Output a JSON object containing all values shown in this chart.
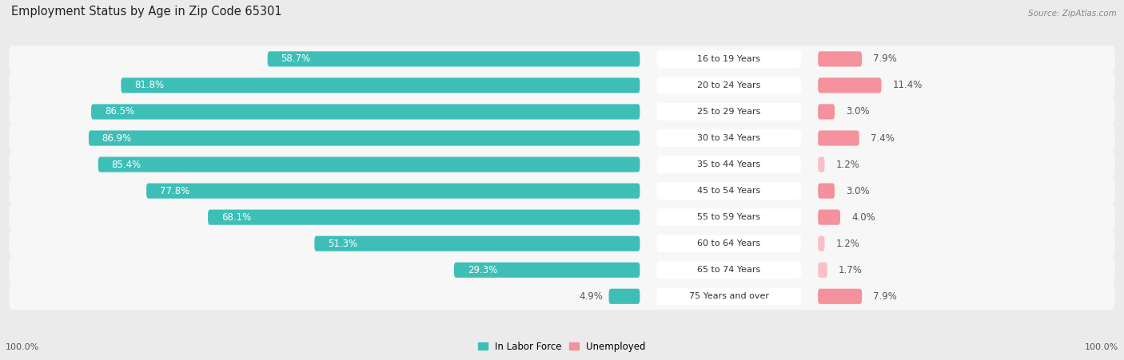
{
  "title": "Employment Status by Age in Zip Code 65301",
  "source": "Source: ZipAtlas.com",
  "categories": [
    "16 to 19 Years",
    "20 to 24 Years",
    "25 to 29 Years",
    "30 to 34 Years",
    "35 to 44 Years",
    "45 to 54 Years",
    "55 to 59 Years",
    "60 to 64 Years",
    "65 to 74 Years",
    "75 Years and over"
  ],
  "labor_force": [
    58.7,
    81.8,
    86.5,
    86.9,
    85.4,
    77.8,
    68.1,
    51.3,
    29.3,
    4.9
  ],
  "unemployed": [
    7.9,
    11.4,
    3.0,
    7.4,
    1.2,
    3.0,
    4.0,
    1.2,
    1.7,
    7.9
  ],
  "labor_force_color": "#3DBFB8",
  "unemployed_color": "#F4919C",
  "unemployed_light_color": "#F9C0C8",
  "background_color": "#ebebeb",
  "row_bg_color": "#f7f7f7",
  "title_fontsize": 10.5,
  "bar_label_fontsize": 8.5,
  "cat_label_fontsize": 8.0,
  "axis_label_fontsize": 8.0,
  "legend_fontsize": 8.5,
  "source_fontsize": 7.5
}
